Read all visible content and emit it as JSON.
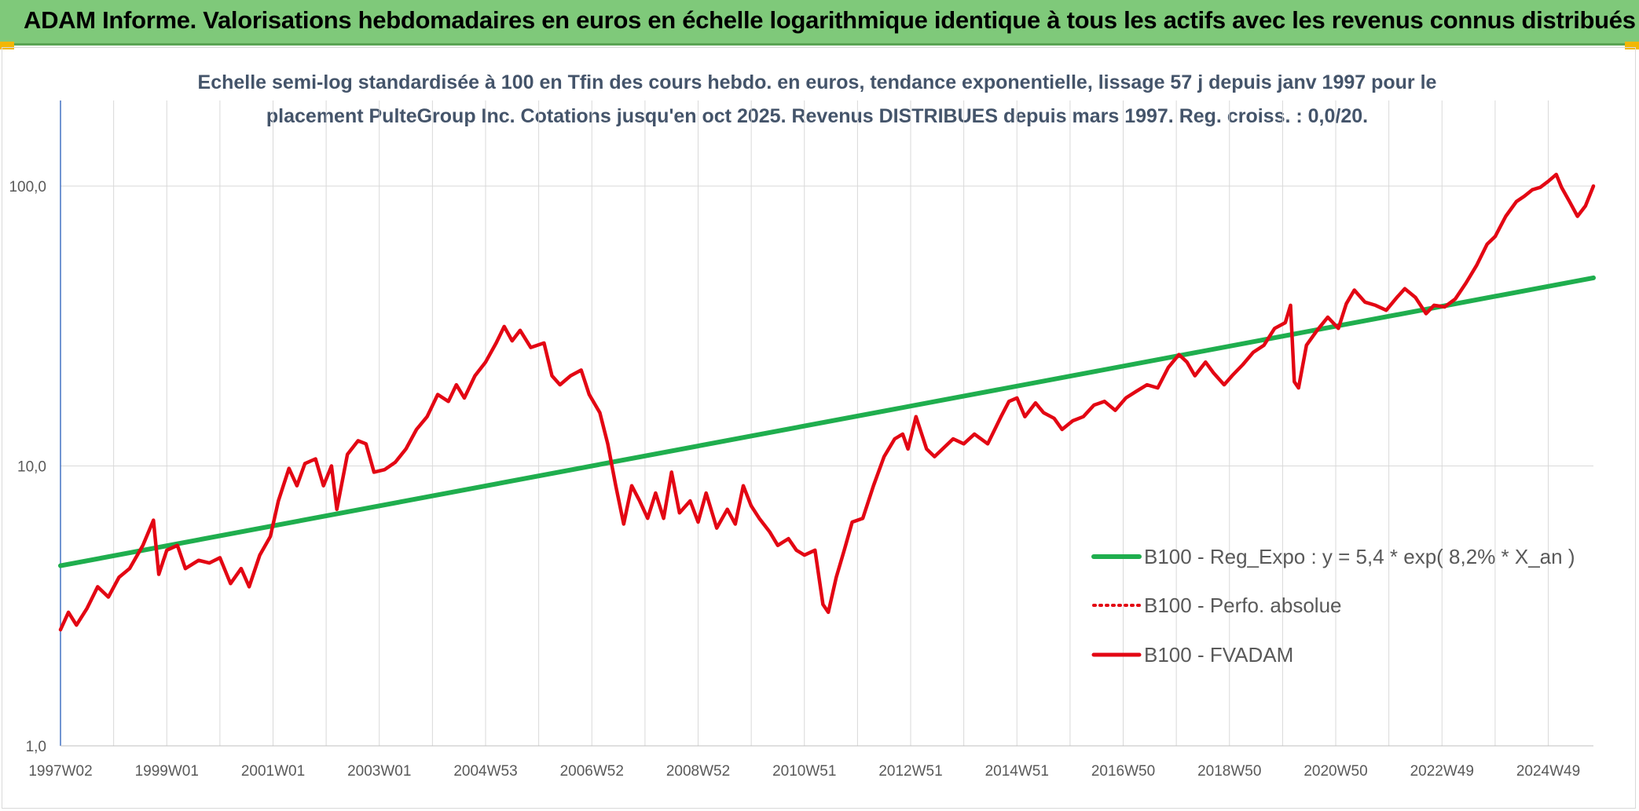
{
  "header": {
    "title": "ADAM Informe. Valorisations hebdomadaires en euros en échelle logarithmique identique à tous les actifs avec les revenus connus distribués"
  },
  "colors": {
    "header_bg": "#7fc97a",
    "regression": "#1fae4e",
    "fvadam": "#e30613",
    "perfo": "#e30613",
    "axis": "#4472c4",
    "grid": "#d9d9d9"
  },
  "chart_data": {
    "type": "line",
    "title_line1": "Echelle semi-log standardisée à 100 en Tfin des cours hebdo. en euros, tendance exponentielle, lissage 57 j depuis janv 1997 pour le",
    "title_line2": "placement PulteGroup Inc. Cotations jusqu'en oct 2025. Revenus DISTRIBUES depuis mars 1997. Reg. croiss. : 0,0/20.",
    "y_scale": "log",
    "ylim": [
      1,
      200
    ],
    "y_ticks": [
      {
        "value": 1,
        "label": "1,0"
      },
      {
        "value": 10,
        "label": "10,0"
      },
      {
        "value": 100,
        "label": "100,0"
      }
    ],
    "xlim": [
      1997.0,
      2025.85
    ],
    "x_ticks": [
      {
        "x": 1997.0,
        "label": "1997W02"
      },
      {
        "x": 1999.0,
        "label": "1999W01"
      },
      {
        "x": 2001.0,
        "label": "2001W01"
      },
      {
        "x": 2003.0,
        "label": "2003W01"
      },
      {
        "x": 2005.0,
        "label": "2004W53"
      },
      {
        "x": 2007.0,
        "label": "2006W52"
      },
      {
        "x": 2009.0,
        "label": "2008W52"
      },
      {
        "x": 2011.0,
        "label": "2010W51"
      },
      {
        "x": 2013.0,
        "label": "2012W51"
      },
      {
        "x": 2015.0,
        "label": "2014W51"
      },
      {
        "x": 2017.0,
        "label": "2016W50"
      },
      {
        "x": 2019.0,
        "label": "2018W50"
      },
      {
        "x": 2021.0,
        "label": "2020W50"
      },
      {
        "x": 2023.0,
        "label": "2022W49"
      },
      {
        "x": 2025.0,
        "label": "2024W49"
      }
    ],
    "grid": true,
    "legend_placement": "right",
    "series": [
      {
        "name": "B100 - Reg_Expo : y = 5,4 * exp( 8,2% *  X_an )",
        "style": "solid-thick",
        "points": [
          [
            1997.0,
            4.4
          ],
          [
            2025.85,
            47.0
          ]
        ]
      },
      {
        "name": "B100 - Perfo. absolue",
        "style": "dotted",
        "points": []
      },
      {
        "name": "B100 - FVADAM",
        "style": "solid",
        "points": [
          [
            1997.0,
            2.6
          ],
          [
            1997.15,
            3.0
          ],
          [
            1997.3,
            2.7
          ],
          [
            1997.5,
            3.1
          ],
          [
            1997.7,
            3.7
          ],
          [
            1997.9,
            3.4
          ],
          [
            1998.1,
            4.0
          ],
          [
            1998.3,
            4.3
          ],
          [
            1998.55,
            5.2
          ],
          [
            1998.75,
            6.4
          ],
          [
            1998.85,
            4.1
          ],
          [
            1999.0,
            5.0
          ],
          [
            1999.2,
            5.2
          ],
          [
            1999.35,
            4.3
          ],
          [
            1999.6,
            4.6
          ],
          [
            1999.8,
            4.5
          ],
          [
            2000.0,
            4.7
          ],
          [
            2000.2,
            3.8
          ],
          [
            2000.4,
            4.3
          ],
          [
            2000.55,
            3.7
          ],
          [
            2000.75,
            4.8
          ],
          [
            2000.95,
            5.6
          ],
          [
            2001.1,
            7.5
          ],
          [
            2001.3,
            9.8
          ],
          [
            2001.45,
            8.5
          ],
          [
            2001.6,
            10.2
          ],
          [
            2001.8,
            10.6
          ],
          [
            2001.95,
            8.5
          ],
          [
            2002.1,
            10.0
          ],
          [
            2002.2,
            7.0
          ],
          [
            2002.4,
            11.0
          ],
          [
            2002.6,
            12.3
          ],
          [
            2002.75,
            12.0
          ],
          [
            2002.9,
            9.5
          ],
          [
            2003.1,
            9.7
          ],
          [
            2003.3,
            10.3
          ],
          [
            2003.5,
            11.5
          ],
          [
            2003.7,
            13.5
          ],
          [
            2003.9,
            15.0
          ],
          [
            2004.1,
            18.0
          ],
          [
            2004.3,
            17.0
          ],
          [
            2004.45,
            19.5
          ],
          [
            2004.6,
            17.5
          ],
          [
            2004.8,
            21.0
          ],
          [
            2005.0,
            23.5
          ],
          [
            2005.2,
            27.5
          ],
          [
            2005.35,
            31.5
          ],
          [
            2005.5,
            28.0
          ],
          [
            2005.65,
            30.5
          ],
          [
            2005.85,
            26.5
          ],
          [
            2006.1,
            27.5
          ],
          [
            2006.25,
            21.0
          ],
          [
            2006.4,
            19.5
          ],
          [
            2006.6,
            21.0
          ],
          [
            2006.8,
            22.0
          ],
          [
            2006.95,
            18.0
          ],
          [
            2007.15,
            15.5
          ],
          [
            2007.3,
            12.0
          ],
          [
            2007.45,
            8.5
          ],
          [
            2007.6,
            6.2
          ],
          [
            2007.75,
            8.5
          ],
          [
            2007.9,
            7.5
          ],
          [
            2008.05,
            6.5
          ],
          [
            2008.2,
            8.0
          ],
          [
            2008.35,
            6.5
          ],
          [
            2008.5,
            9.5
          ],
          [
            2008.65,
            6.8
          ],
          [
            2008.85,
            7.5
          ],
          [
            2009.0,
            6.3
          ],
          [
            2009.15,
            8.0
          ],
          [
            2009.35,
            6.0
          ],
          [
            2009.55,
            7.0
          ],
          [
            2009.7,
            6.2
          ],
          [
            2009.85,
            8.5
          ],
          [
            2010.0,
            7.2
          ],
          [
            2010.15,
            6.5
          ],
          [
            2010.35,
            5.8
          ],
          [
            2010.5,
            5.2
          ],
          [
            2010.7,
            5.5
          ],
          [
            2010.85,
            5.0
          ],
          [
            2011.0,
            4.8
          ],
          [
            2011.2,
            5.0
          ],
          [
            2011.35,
            3.2
          ],
          [
            2011.45,
            3.0
          ],
          [
            2011.6,
            4.0
          ],
          [
            2011.75,
            5.0
          ],
          [
            2011.9,
            6.3
          ],
          [
            2012.1,
            6.5
          ],
          [
            2012.3,
            8.5
          ],
          [
            2012.5,
            10.8
          ],
          [
            2012.7,
            12.5
          ],
          [
            2012.85,
            13.0
          ],
          [
            2012.95,
            11.5
          ],
          [
            2013.1,
            15.0
          ],
          [
            2013.3,
            11.5
          ],
          [
            2013.45,
            10.8
          ],
          [
            2013.6,
            11.5
          ],
          [
            2013.8,
            12.5
          ],
          [
            2014.0,
            12.0
          ],
          [
            2014.2,
            13.0
          ],
          [
            2014.45,
            12.0
          ],
          [
            2014.7,
            15.0
          ],
          [
            2014.85,
            17.0
          ],
          [
            2015.0,
            17.5
          ],
          [
            2015.15,
            15.0
          ],
          [
            2015.35,
            16.8
          ],
          [
            2015.5,
            15.5
          ],
          [
            2015.7,
            14.8
          ],
          [
            2015.85,
            13.5
          ],
          [
            2016.05,
            14.5
          ],
          [
            2016.25,
            15.0
          ],
          [
            2016.45,
            16.5
          ],
          [
            2016.65,
            17.0
          ],
          [
            2016.85,
            15.8
          ],
          [
            2017.05,
            17.5
          ],
          [
            2017.25,
            18.5
          ],
          [
            2017.45,
            19.5
          ],
          [
            2017.65,
            19.0
          ],
          [
            2017.85,
            22.5
          ],
          [
            2018.05,
            25.0
          ],
          [
            2018.2,
            23.5
          ],
          [
            2018.35,
            21.0
          ],
          [
            2018.55,
            23.5
          ],
          [
            2018.7,
            21.5
          ],
          [
            2018.9,
            19.5
          ],
          [
            2019.05,
            21.0
          ],
          [
            2019.25,
            23.0
          ],
          [
            2019.45,
            25.5
          ],
          [
            2019.65,
            27.0
          ],
          [
            2019.85,
            31.0
          ],
          [
            2020.05,
            32.5
          ],
          [
            2020.15,
            37.5
          ],
          [
            2020.22,
            20.0
          ],
          [
            2020.3,
            19.0
          ],
          [
            2020.45,
            27.0
          ],
          [
            2020.65,
            30.5
          ],
          [
            2020.85,
            34.0
          ],
          [
            2021.05,
            31.0
          ],
          [
            2021.2,
            38.0
          ],
          [
            2021.35,
            42.5
          ],
          [
            2021.55,
            38.5
          ],
          [
            2021.75,
            37.5
          ],
          [
            2021.95,
            36.0
          ],
          [
            2022.15,
            40.0
          ],
          [
            2022.3,
            43.0
          ],
          [
            2022.5,
            40.0
          ],
          [
            2022.7,
            35.0
          ],
          [
            2022.85,
            37.5
          ],
          [
            2023.05,
            37.0
          ],
          [
            2023.25,
            39.5
          ],
          [
            2023.45,
            45.0
          ],
          [
            2023.65,
            52.0
          ],
          [
            2023.85,
            62.0
          ],
          [
            2024.0,
            66.0
          ],
          [
            2024.2,
            78.0
          ],
          [
            2024.4,
            88.0
          ],
          [
            2024.55,
            92.0
          ],
          [
            2024.7,
            97.0
          ],
          [
            2024.85,
            99.0
          ],
          [
            2025.0,
            104.0
          ],
          [
            2025.15,
            110.0
          ],
          [
            2025.25,
            99.0
          ],
          [
            2025.4,
            88.0
          ],
          [
            2025.55,
            78.0
          ],
          [
            2025.7,
            85.0
          ],
          [
            2025.85,
            100.0
          ]
        ]
      }
    ]
  }
}
